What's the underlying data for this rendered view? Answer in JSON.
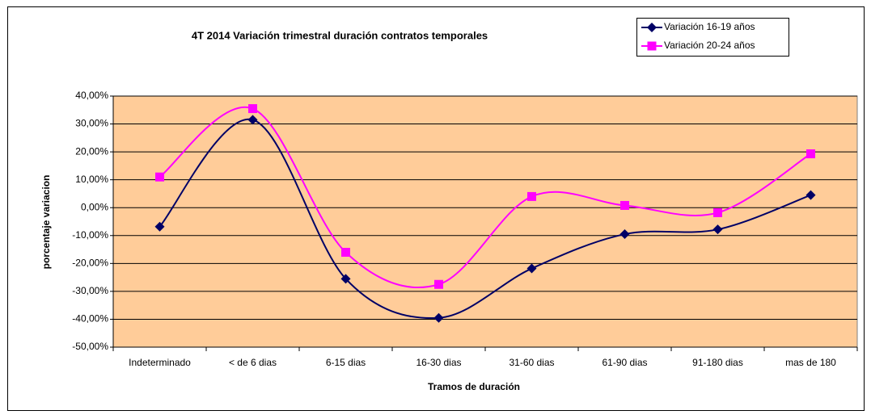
{
  "chart_data": {
    "type": "line",
    "title": "4T 2014 Variación trimestral duración contratos temporales",
    "x_label": "Tramos de duración",
    "y_label": "porcentaje variacion",
    "categories": [
      "Indeterminado",
      "< de 6 dias",
      "6-15 dias",
      "16-30 dias",
      "31-60 dias",
      "61-90 dias",
      "91-180 dias",
      "mas de 180"
    ],
    "series": [
      {
        "name": "Variación 16-19 años",
        "color": "#000066",
        "marker": "diamond",
        "values": [
          -6.8,
          31.5,
          -25.5,
          -39.5,
          -21.8,
          -9.5,
          -7.8,
          4.5
        ]
      },
      {
        "name": "Variación 20-24 años",
        "color": "#ff00ff",
        "marker": "square",
        "values": [
          11,
          35.5,
          -16,
          -27.5,
          4,
          0.8,
          -1.8,
          19.3
        ]
      }
    ],
    "ylim": [
      -50,
      40
    ],
    "yticks": [
      {
        "value": -50,
        "label": "-50,00%"
      },
      {
        "value": -40,
        "label": "-40,00%"
      },
      {
        "value": -30,
        "label": "-30,00%"
      },
      {
        "value": -20,
        "label": "-20,00%"
      },
      {
        "value": -10,
        "label": "-10,00%"
      },
      {
        "value": 0,
        "label": "0,00%"
      },
      {
        "value": 10,
        "label": "10,00%"
      },
      {
        "value": 20,
        "label": "20,00%"
      },
      {
        "value": 30,
        "label": "30,00%"
      },
      {
        "value": 40,
        "label": "40,00%"
      }
    ],
    "grid": true,
    "smooth": true,
    "plot_background": "#ffcc99",
    "legend": "top-right"
  }
}
